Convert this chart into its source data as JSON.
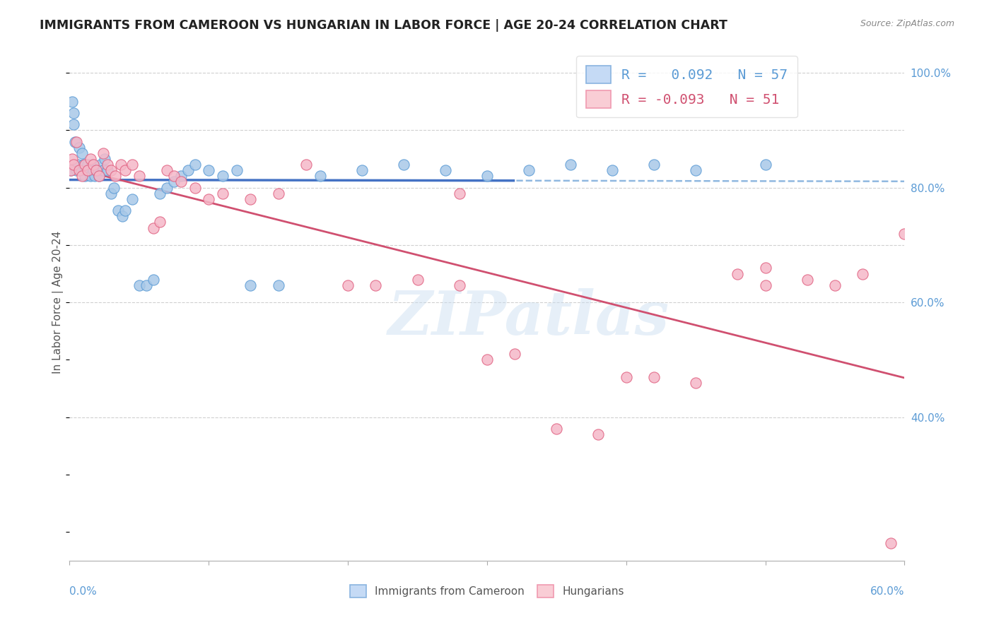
{
  "title": "IMMIGRANTS FROM CAMEROON VS HUNGARIAN IN LABOR FORCE | AGE 20-24 CORRELATION CHART",
  "source": "Source: ZipAtlas.com",
  "ylabel": "In Labor Force | Age 20-24",
  "color_blue_fill": "#a8c8e8",
  "color_blue_edge": "#5b9bd5",
  "color_pink_fill": "#f5b8c8",
  "color_pink_edge": "#e06080",
  "color_line_blue": "#4472c4",
  "color_line_pink": "#d05070",
  "color_dash_blue": "#90b8e0",
  "color_grid": "#d0d0d0",
  "yticks": [
    0.4,
    0.6,
    0.8,
    1.0
  ],
  "ytick_labels": [
    "40.0%",
    "60.0%",
    "80.0%",
    "100.0%"
  ],
  "xlim": [
    0.0,
    0.6
  ],
  "ylim": [
    0.15,
    1.05
  ],
  "blue_x": [
    0.001,
    0.002,
    0.003,
    0.003,
    0.004,
    0.005,
    0.006,
    0.007,
    0.008,
    0.009,
    0.01,
    0.011,
    0.012,
    0.013,
    0.014,
    0.015,
    0.016,
    0.017,
    0.018,
    0.019,
    0.02,
    0.021,
    0.022,
    0.024,
    0.025,
    0.027,
    0.03,
    0.032,
    0.035,
    0.038,
    0.04,
    0.045,
    0.05,
    0.055,
    0.06,
    0.065,
    0.07,
    0.075,
    0.08,
    0.085,
    0.09,
    0.1,
    0.11,
    0.12,
    0.13,
    0.15,
    0.18,
    0.21,
    0.24,
    0.27,
    0.3,
    0.33,
    0.36,
    0.39,
    0.42,
    0.45,
    0.5
  ],
  "blue_y": [
    0.83,
    0.95,
    0.91,
    0.93,
    0.88,
    0.83,
    0.84,
    0.87,
    0.83,
    0.86,
    0.84,
    0.82,
    0.83,
    0.84,
    0.83,
    0.82,
    0.84,
    0.83,
    0.82,
    0.83,
    0.83,
    0.82,
    0.84,
    0.83,
    0.85,
    0.83,
    0.79,
    0.8,
    0.76,
    0.75,
    0.76,
    0.78,
    0.63,
    0.63,
    0.64,
    0.79,
    0.8,
    0.81,
    0.82,
    0.83,
    0.84,
    0.83,
    0.82,
    0.83,
    0.63,
    0.63,
    0.82,
    0.83,
    0.84,
    0.83,
    0.82,
    0.83,
    0.84,
    0.83,
    0.84,
    0.83,
    0.84
  ],
  "pink_x": [
    0.001,
    0.002,
    0.003,
    0.005,
    0.007,
    0.009,
    0.011,
    0.013,
    0.015,
    0.017,
    0.019,
    0.021,
    0.024,
    0.027,
    0.03,
    0.033,
    0.037,
    0.04,
    0.045,
    0.05,
    0.06,
    0.065,
    0.07,
    0.075,
    0.08,
    0.09,
    0.1,
    0.11,
    0.13,
    0.15,
    0.17,
    0.2,
    0.22,
    0.25,
    0.28,
    0.3,
    0.32,
    0.35,
    0.38,
    0.4,
    0.42,
    0.45,
    0.48,
    0.5,
    0.53,
    0.55,
    0.57,
    0.59,
    0.6,
    0.28,
    0.5
  ],
  "pink_y": [
    0.83,
    0.85,
    0.84,
    0.88,
    0.83,
    0.82,
    0.84,
    0.83,
    0.85,
    0.84,
    0.83,
    0.82,
    0.86,
    0.84,
    0.83,
    0.82,
    0.84,
    0.83,
    0.84,
    0.82,
    0.73,
    0.74,
    0.83,
    0.82,
    0.81,
    0.8,
    0.78,
    0.79,
    0.78,
    0.79,
    0.84,
    0.63,
    0.63,
    0.64,
    0.63,
    0.5,
    0.51,
    0.38,
    0.37,
    0.47,
    0.47,
    0.46,
    0.65,
    0.66,
    0.64,
    0.63,
    0.65,
    0.18,
    0.72,
    0.79,
    0.63
  ],
  "watermark_text": "ZIPatlas",
  "legend1_text": "R =   0.092   N = 57",
  "legend2_text": "R = -0.093   N = 51",
  "bottom_legend1": "Immigrants from Cameroon",
  "bottom_legend2": "Hungarians"
}
